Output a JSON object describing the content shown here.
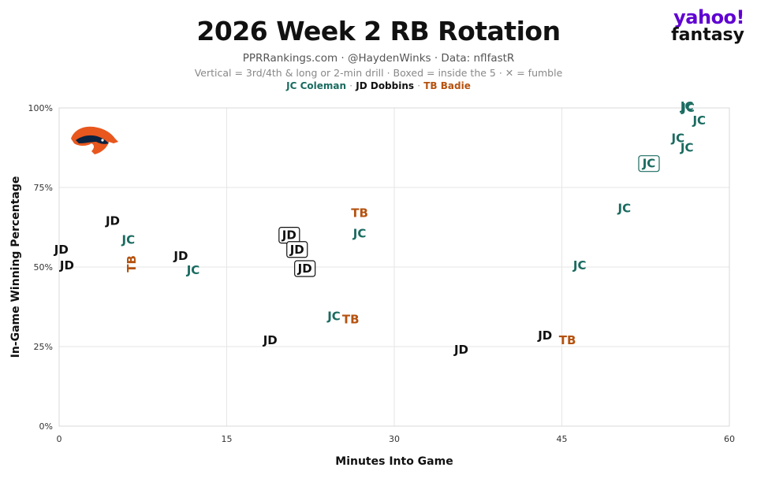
{
  "header": {
    "title": "2026 Week 2 RB Rotation",
    "subtitle": "PPRRankings.com · @HaydenWinks · Data: nflfastR",
    "note": "Vertical = 3rd/4th & long or 2-min drill · Boxed = inside the 5 · ✕ = fumble",
    "legend": [
      {
        "label": "JC Coleman",
        "color": "#1a6b60"
      },
      {
        "label": "JD Dobbins",
        "color": "#111111"
      },
      {
        "label": "TB Badie",
        "color": "#b5520f"
      }
    ],
    "legend_sep": "·"
  },
  "brand": {
    "line1": "yahoo!",
    "line2": "fantasy"
  },
  "colors": {
    "JC": "#1a6b60",
    "JD": "#111111",
    "TB": "#b5520f",
    "grid": "#e6e6e6",
    "logo_orange": "#e8571e",
    "logo_navy": "#0b2240"
  },
  "chart_data": {
    "type": "scatter",
    "xlabel": "Minutes Into Game",
    "ylabel": "In-Game Winning Percentage",
    "xlim": [
      0,
      60
    ],
    "ylim": [
      0,
      100
    ],
    "xticks": [
      0,
      15,
      30,
      45,
      60
    ],
    "yticks": [
      0,
      25,
      50,
      75,
      100
    ],
    "xtick_labels": [
      "0",
      "15",
      "30",
      "45",
      "60"
    ],
    "ytick_labels": [
      "0%",
      "25%",
      "50%",
      "75%",
      "100%"
    ],
    "grid": true,
    "series": [
      {
        "name": "JC Coleman",
        "label": "JC",
        "color": "#1a6b60",
        "points": [
          {
            "x": 6.2,
            "y": 58.5,
            "vertical": false,
            "boxed": false
          },
          {
            "x": 12.0,
            "y": 49.0,
            "vertical": false,
            "boxed": false
          },
          {
            "x": 24.6,
            "y": 34.5,
            "vertical": false,
            "boxed": false
          },
          {
            "x": 26.9,
            "y": 60.5,
            "vertical": false,
            "boxed": false
          },
          {
            "x": 46.6,
            "y": 50.5,
            "vertical": false,
            "boxed": false
          },
          {
            "x": 50.6,
            "y": 68.5,
            "vertical": false,
            "boxed": false
          },
          {
            "x": 52.8,
            "y": 82.5,
            "vertical": false,
            "boxed": true
          },
          {
            "x": 55.4,
            "y": 90.5,
            "vertical": false,
            "boxed": false
          },
          {
            "x": 56.2,
            "y": 87.5,
            "vertical": false,
            "boxed": false
          },
          {
            "x": 56.2,
            "y": 100.5,
            "vertical": false,
            "boxed": false
          },
          {
            "x": 56.3,
            "y": 100.0,
            "vertical": false,
            "boxed": false
          },
          {
            "x": 57.3,
            "y": 96.0,
            "vertical": false,
            "boxed": false
          }
        ]
      },
      {
        "name": "JD Dobbins",
        "label": "JD",
        "color": "#111111",
        "points": [
          {
            "x": 0.2,
            "y": 55.5,
            "vertical": false,
            "boxed": false
          },
          {
            "x": 0.7,
            "y": 50.5,
            "vertical": false,
            "boxed": false
          },
          {
            "x": 4.8,
            "y": 64.5,
            "vertical": false,
            "boxed": false
          },
          {
            "x": 10.9,
            "y": 53.5,
            "vertical": false,
            "boxed": false
          },
          {
            "x": 18.9,
            "y": 27.0,
            "vertical": false,
            "boxed": false
          },
          {
            "x": 20.6,
            "y": 60.0,
            "vertical": false,
            "boxed": true
          },
          {
            "x": 21.3,
            "y": 55.5,
            "vertical": false,
            "boxed": true
          },
          {
            "x": 22.0,
            "y": 49.5,
            "vertical": false,
            "boxed": true
          },
          {
            "x": 36.0,
            "y": 24.0,
            "vertical": false,
            "boxed": false
          },
          {
            "x": 43.5,
            "y": 28.5,
            "vertical": false,
            "boxed": false
          }
        ]
      },
      {
        "name": "TB Badie",
        "label": "TB",
        "color": "#b5520f",
        "points": [
          {
            "x": 6.5,
            "y": 51.0,
            "vertical": true,
            "boxed": false
          },
          {
            "x": 26.1,
            "y": 33.5,
            "vertical": false,
            "boxed": false
          },
          {
            "x": 26.9,
            "y": 67.0,
            "vertical": false,
            "boxed": false
          },
          {
            "x": 45.5,
            "y": 27.0,
            "vertical": false,
            "boxed": false
          }
        ]
      }
    ]
  }
}
